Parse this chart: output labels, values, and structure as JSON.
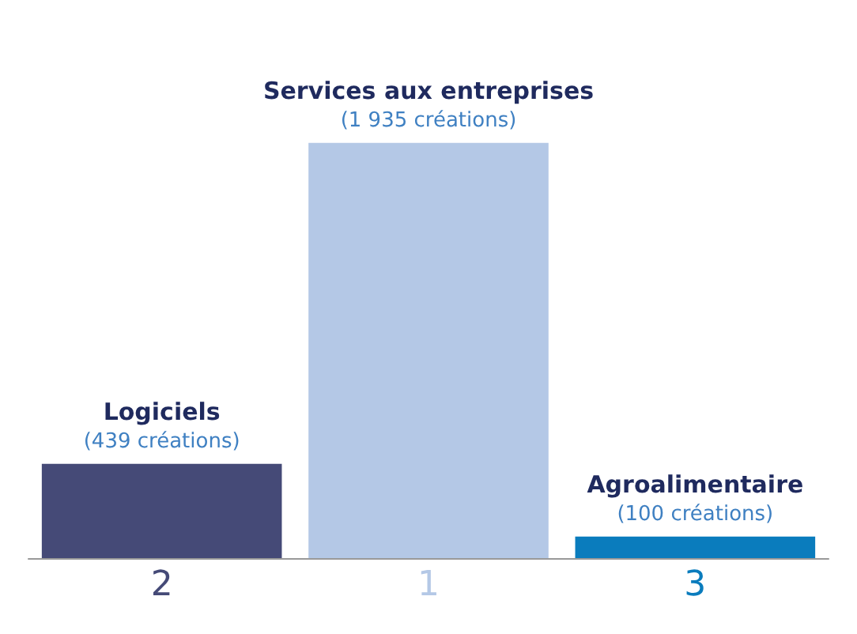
{
  "chart_data": {
    "type": "bar",
    "categories": [
      "Logiciels",
      "Services aux entreprises",
      "Agroalimentaire"
    ],
    "values": [
      439,
      1935,
      100
    ],
    "colors": [
      "#454a77",
      "#b4c8e6",
      "#0a7cbd"
    ],
    "value_labels": [
      "(439 créations)",
      "(1 935 créations)",
      "(100 créations)"
    ],
    "annotations": [
      "2",
      "1",
      "3"
    ]
  }
}
